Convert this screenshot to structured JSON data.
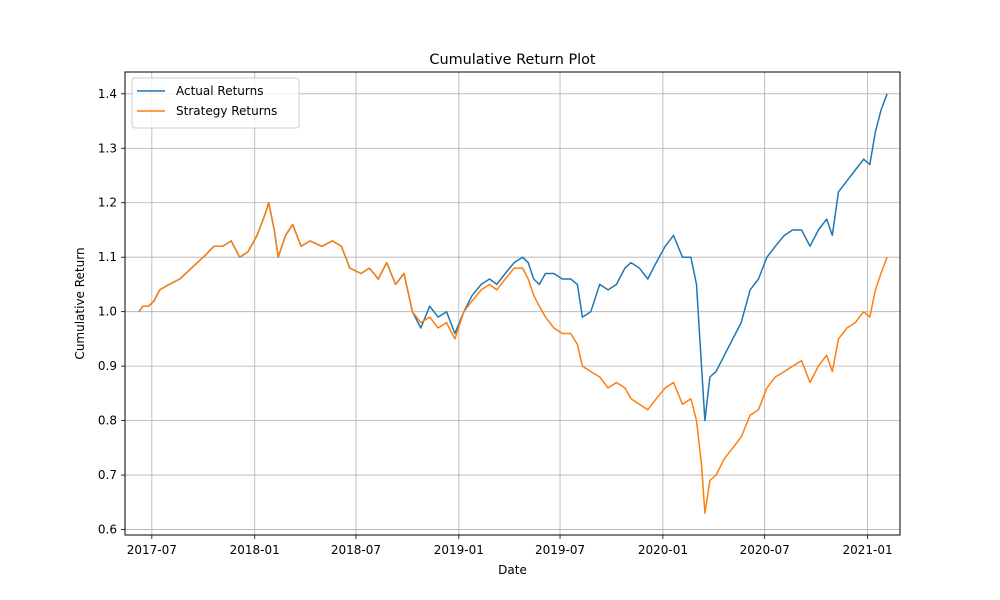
{
  "chart_data": {
    "type": "line",
    "title": "Cumulative Return Plot",
    "xlabel": "Date",
    "ylabel": "Cumulative Return",
    "grid": true,
    "legend_position": "top-left",
    "xlim": [
      "2017-05-14",
      "2021-02-28"
    ],
    "ylim": [
      0.59,
      1.44
    ],
    "x_ticks": [
      {
        "date": "2017-07-01",
        "label": "2017-07"
      },
      {
        "date": "2018-01-01",
        "label": "2018-01"
      },
      {
        "date": "2018-07-01",
        "label": "2018-07"
      },
      {
        "date": "2019-01-01",
        "label": "2019-01"
      },
      {
        "date": "2019-07-01",
        "label": "2019-07"
      },
      {
        "date": "2020-01-01",
        "label": "2020-01"
      },
      {
        "date": "2020-07-01",
        "label": "2020-07"
      },
      {
        "date": "2021-01-01",
        "label": "2021-01"
      }
    ],
    "y_ticks": [
      {
        "value": 0.6,
        "label": "0.6"
      },
      {
        "value": 0.7,
        "label": "0.7"
      },
      {
        "value": 0.8,
        "label": "0.8"
      },
      {
        "value": 0.9,
        "label": "0.9"
      },
      {
        "value": 1.0,
        "label": "1.0"
      },
      {
        "value": 1.1,
        "label": "1.1"
      },
      {
        "value": 1.2,
        "label": "1.2"
      },
      {
        "value": 1.3,
        "label": "1.3"
      },
      {
        "value": 1.4,
        "label": "1.4"
      }
    ],
    "series": [
      {
        "name": "Actual Returns",
        "color": "#1f77b4",
        "points": [
          [
            "2017-06-08",
            1.0
          ],
          [
            "2017-06-15",
            1.01
          ],
          [
            "2017-06-25",
            1.01
          ],
          [
            "2017-07-05",
            1.02
          ],
          [
            "2017-07-15",
            1.04
          ],
          [
            "2017-08-01",
            1.05
          ],
          [
            "2017-08-20",
            1.06
          ],
          [
            "2017-09-10",
            1.08
          ],
          [
            "2017-10-01",
            1.1
          ],
          [
            "2017-10-20",
            1.12
          ],
          [
            "2017-11-05",
            1.12
          ],
          [
            "2017-11-20",
            1.13
          ],
          [
            "2017-12-05",
            1.1
          ],
          [
            "2017-12-20",
            1.11
          ],
          [
            "2018-01-05",
            1.14
          ],
          [
            "2018-01-20",
            1.18
          ],
          [
            "2018-01-26",
            1.2
          ],
          [
            "2018-02-05",
            1.15
          ],
          [
            "2018-02-12",
            1.1
          ],
          [
            "2018-02-25",
            1.14
          ],
          [
            "2018-03-10",
            1.16
          ],
          [
            "2018-03-25",
            1.12
          ],
          [
            "2018-04-10",
            1.13
          ],
          [
            "2018-05-01",
            1.12
          ],
          [
            "2018-05-20",
            1.13
          ],
          [
            "2018-06-05",
            1.12
          ],
          [
            "2018-06-20",
            1.08
          ],
          [
            "2018-07-10",
            1.07
          ],
          [
            "2018-07-25",
            1.08
          ],
          [
            "2018-08-10",
            1.06
          ],
          [
            "2018-08-25",
            1.09
          ],
          [
            "2018-09-10",
            1.05
          ],
          [
            "2018-09-25",
            1.07
          ],
          [
            "2018-10-10",
            1.0
          ],
          [
            "2018-10-25",
            0.97
          ],
          [
            "2018-11-10",
            1.01
          ],
          [
            "2018-11-25",
            0.99
          ],
          [
            "2018-12-10",
            1.0
          ],
          [
            "2018-12-25",
            0.96
          ],
          [
            "2019-01-10",
            1.0
          ],
          [
            "2019-01-25",
            1.03
          ],
          [
            "2019-02-10",
            1.05
          ],
          [
            "2019-02-25",
            1.06
          ],
          [
            "2019-03-10",
            1.05
          ],
          [
            "2019-03-25",
            1.07
          ],
          [
            "2019-04-10",
            1.09
          ],
          [
            "2019-04-25",
            1.1
          ],
          [
            "2019-05-05",
            1.09
          ],
          [
            "2019-05-15",
            1.06
          ],
          [
            "2019-05-25",
            1.05
          ],
          [
            "2019-06-05",
            1.07
          ],
          [
            "2019-06-20",
            1.07
          ],
          [
            "2019-07-05",
            1.06
          ],
          [
            "2019-07-20",
            1.06
          ],
          [
            "2019-08-01",
            1.05
          ],
          [
            "2019-08-10",
            0.99
          ],
          [
            "2019-08-25",
            1.0
          ],
          [
            "2019-09-10",
            1.05
          ],
          [
            "2019-09-25",
            1.04
          ],
          [
            "2019-10-10",
            1.05
          ],
          [
            "2019-10-25",
            1.08
          ],
          [
            "2019-11-05",
            1.09
          ],
          [
            "2019-11-20",
            1.08
          ],
          [
            "2019-12-05",
            1.06
          ],
          [
            "2019-12-20",
            1.09
          ],
          [
            "2020-01-05",
            1.12
          ],
          [
            "2020-01-20",
            1.14
          ],
          [
            "2020-02-05",
            1.1
          ],
          [
            "2020-02-20",
            1.1
          ],
          [
            "2020-03-01",
            1.05
          ],
          [
            "2020-03-10",
            0.9
          ],
          [
            "2020-03-16",
            0.8
          ],
          [
            "2020-03-25",
            0.88
          ],
          [
            "2020-04-05",
            0.89
          ],
          [
            "2020-04-20",
            0.92
          ],
          [
            "2020-05-05",
            0.95
          ],
          [
            "2020-05-20",
            0.98
          ],
          [
            "2020-06-05",
            1.04
          ],
          [
            "2020-06-20",
            1.06
          ],
          [
            "2020-07-05",
            1.1
          ],
          [
            "2020-07-20",
            1.12
          ],
          [
            "2020-08-05",
            1.14
          ],
          [
            "2020-08-20",
            1.15
          ],
          [
            "2020-09-05",
            1.15
          ],
          [
            "2020-09-20",
            1.12
          ],
          [
            "2020-10-05",
            1.15
          ],
          [
            "2020-10-20",
            1.17
          ],
          [
            "2020-10-30",
            1.14
          ],
          [
            "2020-11-10",
            1.22
          ],
          [
            "2020-11-25",
            1.24
          ],
          [
            "2020-12-10",
            1.26
          ],
          [
            "2020-12-25",
            1.28
          ],
          [
            "2021-01-05",
            1.27
          ],
          [
            "2021-01-15",
            1.33
          ],
          [
            "2021-01-25",
            1.37
          ],
          [
            "2021-02-05",
            1.4
          ]
        ]
      },
      {
        "name": "Strategy Returns",
        "color": "#ff7f0e",
        "points": [
          [
            "2017-06-08",
            1.0
          ],
          [
            "2017-06-15",
            1.01
          ],
          [
            "2017-06-25",
            1.01
          ],
          [
            "2017-07-05",
            1.02
          ],
          [
            "2017-07-15",
            1.04
          ],
          [
            "2017-08-01",
            1.05
          ],
          [
            "2017-08-20",
            1.06
          ],
          [
            "2017-09-10",
            1.08
          ],
          [
            "2017-10-01",
            1.1
          ],
          [
            "2017-10-20",
            1.12
          ],
          [
            "2017-11-05",
            1.12
          ],
          [
            "2017-11-20",
            1.13
          ],
          [
            "2017-12-05",
            1.1
          ],
          [
            "2017-12-20",
            1.11
          ],
          [
            "2018-01-05",
            1.14
          ],
          [
            "2018-01-20",
            1.18
          ],
          [
            "2018-01-26",
            1.2
          ],
          [
            "2018-02-05",
            1.15
          ],
          [
            "2018-02-12",
            1.1
          ],
          [
            "2018-02-25",
            1.14
          ],
          [
            "2018-03-10",
            1.16
          ],
          [
            "2018-03-25",
            1.12
          ],
          [
            "2018-04-10",
            1.13
          ],
          [
            "2018-05-01",
            1.12
          ],
          [
            "2018-05-20",
            1.13
          ],
          [
            "2018-06-05",
            1.12
          ],
          [
            "2018-06-20",
            1.08
          ],
          [
            "2018-07-10",
            1.07
          ],
          [
            "2018-07-25",
            1.08
          ],
          [
            "2018-08-10",
            1.06
          ],
          [
            "2018-08-25",
            1.09
          ],
          [
            "2018-09-10",
            1.05
          ],
          [
            "2018-09-25",
            1.07
          ],
          [
            "2018-10-10",
            1.0
          ],
          [
            "2018-10-25",
            0.98
          ],
          [
            "2018-11-10",
            0.99
          ],
          [
            "2018-11-25",
            0.97
          ],
          [
            "2018-12-10",
            0.98
          ],
          [
            "2018-12-25",
            0.95
          ],
          [
            "2019-01-10",
            1.0
          ],
          [
            "2019-01-25",
            1.02
          ],
          [
            "2019-02-10",
            1.04
          ],
          [
            "2019-02-25",
            1.05
          ],
          [
            "2019-03-10",
            1.04
          ],
          [
            "2019-03-25",
            1.06
          ],
          [
            "2019-04-10",
            1.08
          ],
          [
            "2019-04-25",
            1.08
          ],
          [
            "2019-05-05",
            1.06
          ],
          [
            "2019-05-15",
            1.03
          ],
          [
            "2019-05-25",
            1.01
          ],
          [
            "2019-06-05",
            0.99
          ],
          [
            "2019-06-20",
            0.97
          ],
          [
            "2019-07-05",
            0.96
          ],
          [
            "2019-07-20",
            0.96
          ],
          [
            "2019-08-01",
            0.94
          ],
          [
            "2019-08-10",
            0.9
          ],
          [
            "2019-08-25",
            0.89
          ],
          [
            "2019-09-10",
            0.88
          ],
          [
            "2019-09-25",
            0.86
          ],
          [
            "2019-10-10",
            0.87
          ],
          [
            "2019-10-25",
            0.86
          ],
          [
            "2019-11-05",
            0.84
          ],
          [
            "2019-11-20",
            0.83
          ],
          [
            "2019-12-05",
            0.82
          ],
          [
            "2019-12-20",
            0.84
          ],
          [
            "2020-01-05",
            0.86
          ],
          [
            "2020-01-20",
            0.87
          ],
          [
            "2020-02-05",
            0.83
          ],
          [
            "2020-02-20",
            0.84
          ],
          [
            "2020-03-01",
            0.8
          ],
          [
            "2020-03-10",
            0.72
          ],
          [
            "2020-03-16",
            0.63
          ],
          [
            "2020-03-25",
            0.69
          ],
          [
            "2020-04-05",
            0.7
          ],
          [
            "2020-04-20",
            0.73
          ],
          [
            "2020-05-05",
            0.75
          ],
          [
            "2020-05-20",
            0.77
          ],
          [
            "2020-06-05",
            0.81
          ],
          [
            "2020-06-20",
            0.82
          ],
          [
            "2020-07-05",
            0.86
          ],
          [
            "2020-07-20",
            0.88
          ],
          [
            "2020-08-05",
            0.89
          ],
          [
            "2020-08-20",
            0.9
          ],
          [
            "2020-09-05",
            0.91
          ],
          [
            "2020-09-20",
            0.87
          ],
          [
            "2020-10-05",
            0.9
          ],
          [
            "2020-10-20",
            0.92
          ],
          [
            "2020-10-30",
            0.89
          ],
          [
            "2020-11-10",
            0.95
          ],
          [
            "2020-11-25",
            0.97
          ],
          [
            "2020-12-10",
            0.98
          ],
          [
            "2020-12-25",
            1.0
          ],
          [
            "2021-01-05",
            0.99
          ],
          [
            "2021-01-15",
            1.04
          ],
          [
            "2021-01-25",
            1.07
          ],
          [
            "2021-02-05",
            1.1
          ]
        ]
      }
    ]
  }
}
